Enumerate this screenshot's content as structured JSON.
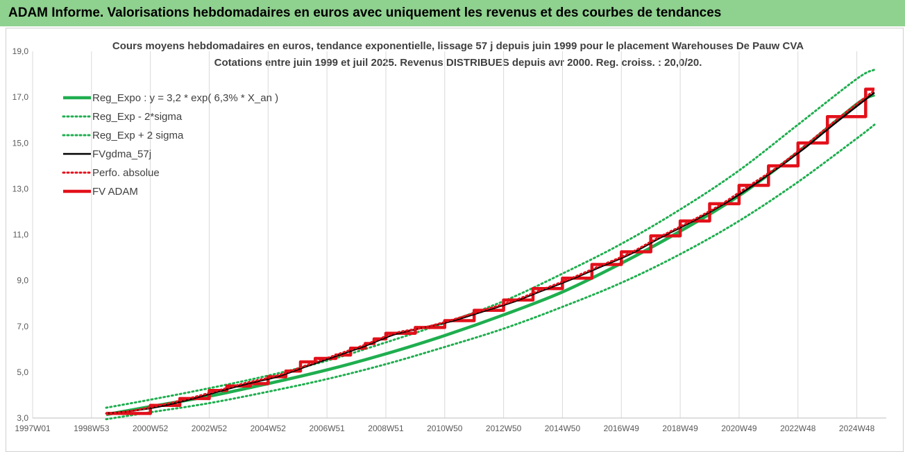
{
  "header": {
    "title": "ADAM Informe. Valorisations hebdomadaires en euros avec uniquement les revenus et des courbes de tendances"
  },
  "chart_data": {
    "type": "line",
    "title": "Cours moyens hebdomadaires en euros, tendance exponentielle, lissage 57 j depuis juin 1999 pour le placement Warehouses De Pauw CVA",
    "subtitle": "Cotations entre juin 1999 et juil 2025. Revenus DISTRIBUES depuis avr 2000. Reg. croiss. : 20,0/20.",
    "xlabel": "",
    "ylabel": "",
    "x_range": [
      1997.0,
      2026.0
    ],
    "ylim": [
      3.0,
      19.0
    ],
    "y_ticks": [
      3,
      5,
      7,
      9,
      11,
      13,
      15,
      17,
      19
    ],
    "y_tick_labels": [
      "3,0",
      "5,0",
      "7,0",
      "9,0",
      "11,0",
      "13,0",
      "15,0",
      "17,0",
      "19,0"
    ],
    "x_ticks": [
      1997.0,
      1999.0,
      2001.0,
      2003.0,
      2005.0,
      2007.0,
      2009.0,
      2011.0,
      2013.0,
      2015.0,
      2017.0,
      2019.0,
      2021.0,
      2023.0,
      2025.0
    ],
    "x_tick_labels": [
      "1997W01",
      "1998W53",
      "2000W52",
      "2002W52",
      "2004W52",
      "2006W51",
      "2008W51",
      "2010W50",
      "2012W50",
      "2014W50",
      "2016W49",
      "2018W49",
      "2020W49",
      "2022W48",
      "2024W48"
    ],
    "grid": "vertical",
    "legend_position": "top-left",
    "colors": {
      "reg_expo": "#1fae4f",
      "fv_gdma": "#000000",
      "fv_adam": "#e3101a",
      "header": "#8fd18f"
    },
    "series": [
      {
        "name": "Reg_Expo : y = 3,2 * exp( 6,3% *  X_an )",
        "style": "solid-thick",
        "color": "#1fae4f",
        "x": [
          1999.5,
          2001,
          2003,
          2005,
          2007,
          2009,
          2011,
          2013,
          2015,
          2017,
          2019,
          2021,
          2023,
          2025,
          2025.6
        ],
        "values": [
          3.15,
          3.5,
          3.95,
          4.5,
          5.1,
          5.8,
          6.6,
          7.5,
          8.5,
          9.75,
          11.15,
          12.7,
          14.6,
          16.7,
          17.1
        ]
      },
      {
        "name": "Reg_Exp - 2*sigma",
        "style": "dotted",
        "color": "#1fae4f",
        "x": [
          1999.5,
          2001,
          2003,
          2005,
          2007,
          2009,
          2011,
          2013,
          2015,
          2017,
          2019,
          2021,
          2023,
          2025,
          2025.6
        ],
        "values": [
          2.95,
          3.25,
          3.65,
          4.15,
          4.7,
          5.35,
          6.1,
          6.9,
          7.85,
          8.9,
          10.15,
          11.6,
          13.3,
          15.2,
          15.8
        ]
      },
      {
        "name": "Reg_Exp + 2 sigma",
        "style": "dotted",
        "color": "#1fae4f",
        "x": [
          1999.5,
          2001,
          2003,
          2005,
          2007,
          2009,
          2011,
          2013,
          2015,
          2017,
          2019,
          2021,
          2023,
          2025,
          2025.6
        ],
        "values": [
          3.45,
          3.8,
          4.3,
          4.85,
          5.5,
          6.3,
          7.15,
          8.1,
          9.3,
          10.6,
          12.1,
          13.8,
          15.8,
          17.8,
          18.2
        ]
      },
      {
        "name": "FVgdma_57j",
        "style": "solid",
        "color": "#000000",
        "x": [
          1999.5,
          2000.3,
          2001.3,
          2002.3,
          2003.3,
          2004.3,
          2005.3,
          2006.3,
          2007.3,
          2008.3,
          2009.3,
          2010.3,
          2011.3,
          2012.3,
          2013.3,
          2014.3,
          2015.3,
          2016.3,
          2017.3,
          2018.3,
          2019.3,
          2020.3,
          2021.3,
          2022.3,
          2023.3,
          2024.3,
          2025.6
        ],
        "values": [
          3.2,
          3.3,
          3.5,
          3.8,
          4.15,
          4.5,
          4.8,
          5.25,
          5.7,
          6.15,
          6.65,
          6.95,
          7.25,
          7.65,
          8.05,
          8.55,
          9.05,
          9.6,
          10.15,
          10.85,
          11.5,
          12.2,
          13.0,
          13.9,
          14.85,
          15.9,
          17.2
        ]
      },
      {
        "name": "Perfo. absolue",
        "style": "dotted",
        "color": "#e3101a",
        "x": [
          1999.5,
          2000.3,
          2001.3,
          2002.3,
          2003.3,
          2004.3,
          2005.3,
          2006.3,
          2007.3,
          2008.3,
          2009.3,
          2010.3,
          2011.3,
          2012.3,
          2013.3,
          2014.3,
          2015.3,
          2016.3,
          2017.3,
          2018.3,
          2019.3,
          2020.3,
          2021.3,
          2022.3,
          2023.3,
          2024.3,
          2025.6
        ],
        "values": [
          3.2,
          3.3,
          3.55,
          3.85,
          4.2,
          4.55,
          4.85,
          5.3,
          5.75,
          6.2,
          6.7,
          6.95,
          7.3,
          7.7,
          8.1,
          8.6,
          9.1,
          9.65,
          10.2,
          10.9,
          11.55,
          12.25,
          13.1,
          13.95,
          14.95,
          16.0,
          17.3
        ]
      },
      {
        "name": "FV ADAM",
        "style": "step-thick",
        "color": "#e3101a",
        "steps_x": [
          1999.5,
          2001.0,
          2002.0,
          2003.0,
          2003.6,
          2004.4,
          2005.0,
          2005.6,
          2006.1,
          2006.6,
          2007.3,
          2007.8,
          2008.3,
          2008.6,
          2009.0,
          2010.0,
          2011.0,
          2012.0,
          2013.0,
          2014.0,
          2015.0,
          2016.0,
          2017.0,
          2018.0,
          2019.0,
          2020.0,
          2021.0,
          2022.0,
          2023.0,
          2024.0,
          2025.0,
          2025.3,
          2025.6
        ],
        "values": [
          3.2,
          3.55,
          3.85,
          4.2,
          4.4,
          4.5,
          4.8,
          5.05,
          5.45,
          5.6,
          5.75,
          6.05,
          6.25,
          6.45,
          6.7,
          6.95,
          7.25,
          7.7,
          8.15,
          8.65,
          9.1,
          9.7,
          10.25,
          10.95,
          11.6,
          12.35,
          13.15,
          14.0,
          15.0,
          16.15,
          16.15,
          17.35,
          17.35
        ]
      }
    ]
  }
}
